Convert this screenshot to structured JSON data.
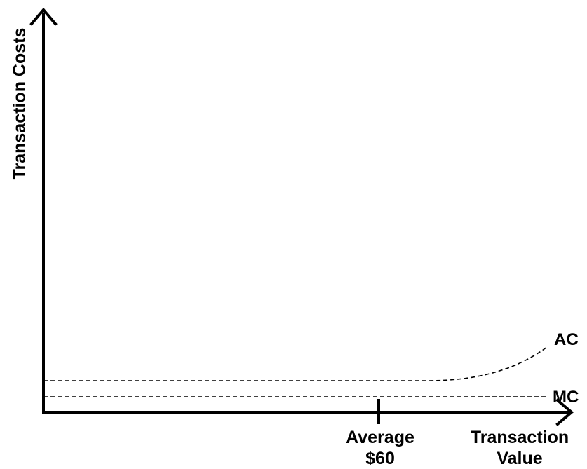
{
  "chart_data": {
    "type": "line",
    "title": "",
    "ylabel": "Transaction Costs",
    "xlabel_lines": [
      "Transaction",
      "Value"
    ],
    "tick": {
      "label_lines": [
        "Average",
        "$60"
      ]
    },
    "series": [
      {
        "name": "AC",
        "style": "dashed",
        "shape": "flat then rising near the right end"
      },
      {
        "name": "MC",
        "style": "dashed",
        "shape": "flat"
      }
    ],
    "grid": false,
    "colors": {
      "line": "#000000",
      "background": "#ffffff"
    }
  }
}
